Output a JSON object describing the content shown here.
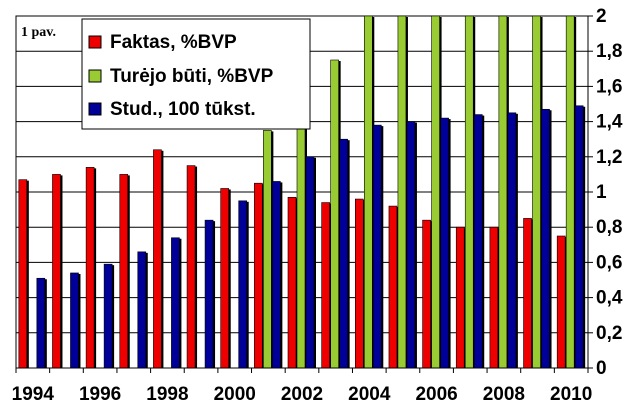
{
  "chart_data": {
    "type": "bar",
    "caption": "1 pav.",
    "categories": [
      "1994",
      "1995",
      "1996",
      "1997",
      "1998",
      "1999",
      "2000",
      "2001",
      "2002",
      "2003",
      "2004",
      "2005",
      "2006",
      "2007",
      "2008",
      "2009",
      "2010"
    ],
    "x_tick_labels": [
      "1994",
      "1996",
      "1998",
      "2000",
      "2002",
      "2004",
      "2006",
      "2008",
      "2010"
    ],
    "y_tick_labels": [
      "0",
      "0,2",
      "0,4",
      "0,6",
      "0,8",
      "1",
      "1,2",
      "1,4",
      "1,6",
      "1,8",
      "2"
    ],
    "ylim": [
      0,
      2
    ],
    "grid": true,
    "legend_position": "top-left",
    "series": [
      {
        "name": "Faktas, %BVP",
        "color": "#ee0000",
        "values": [
          1.07,
          1.1,
          1.14,
          1.1,
          1.24,
          1.15,
          1.02,
          1.05,
          0.97,
          0.94,
          0.96,
          0.92,
          0.84,
          0.8,
          0.8,
          0.85,
          0.75
        ]
      },
      {
        "name": "Turėjo būti, %BVP",
        "color": "#99cc33",
        "values": [
          null,
          null,
          null,
          null,
          null,
          null,
          null,
          1.35,
          1.5,
          1.75,
          2.0,
          2.0,
          2.0,
          2.0,
          2.0,
          2.0,
          2.0
        ]
      },
      {
        "name": "Stud., 100 tūkst.",
        "color": "#000099",
        "values": [
          0.51,
          0.54,
          0.59,
          0.66,
          0.74,
          0.84,
          0.95,
          1.06,
          1.2,
          1.3,
          1.38,
          1.4,
          1.42,
          1.44,
          1.45,
          1.47,
          1.49
        ]
      }
    ]
  }
}
